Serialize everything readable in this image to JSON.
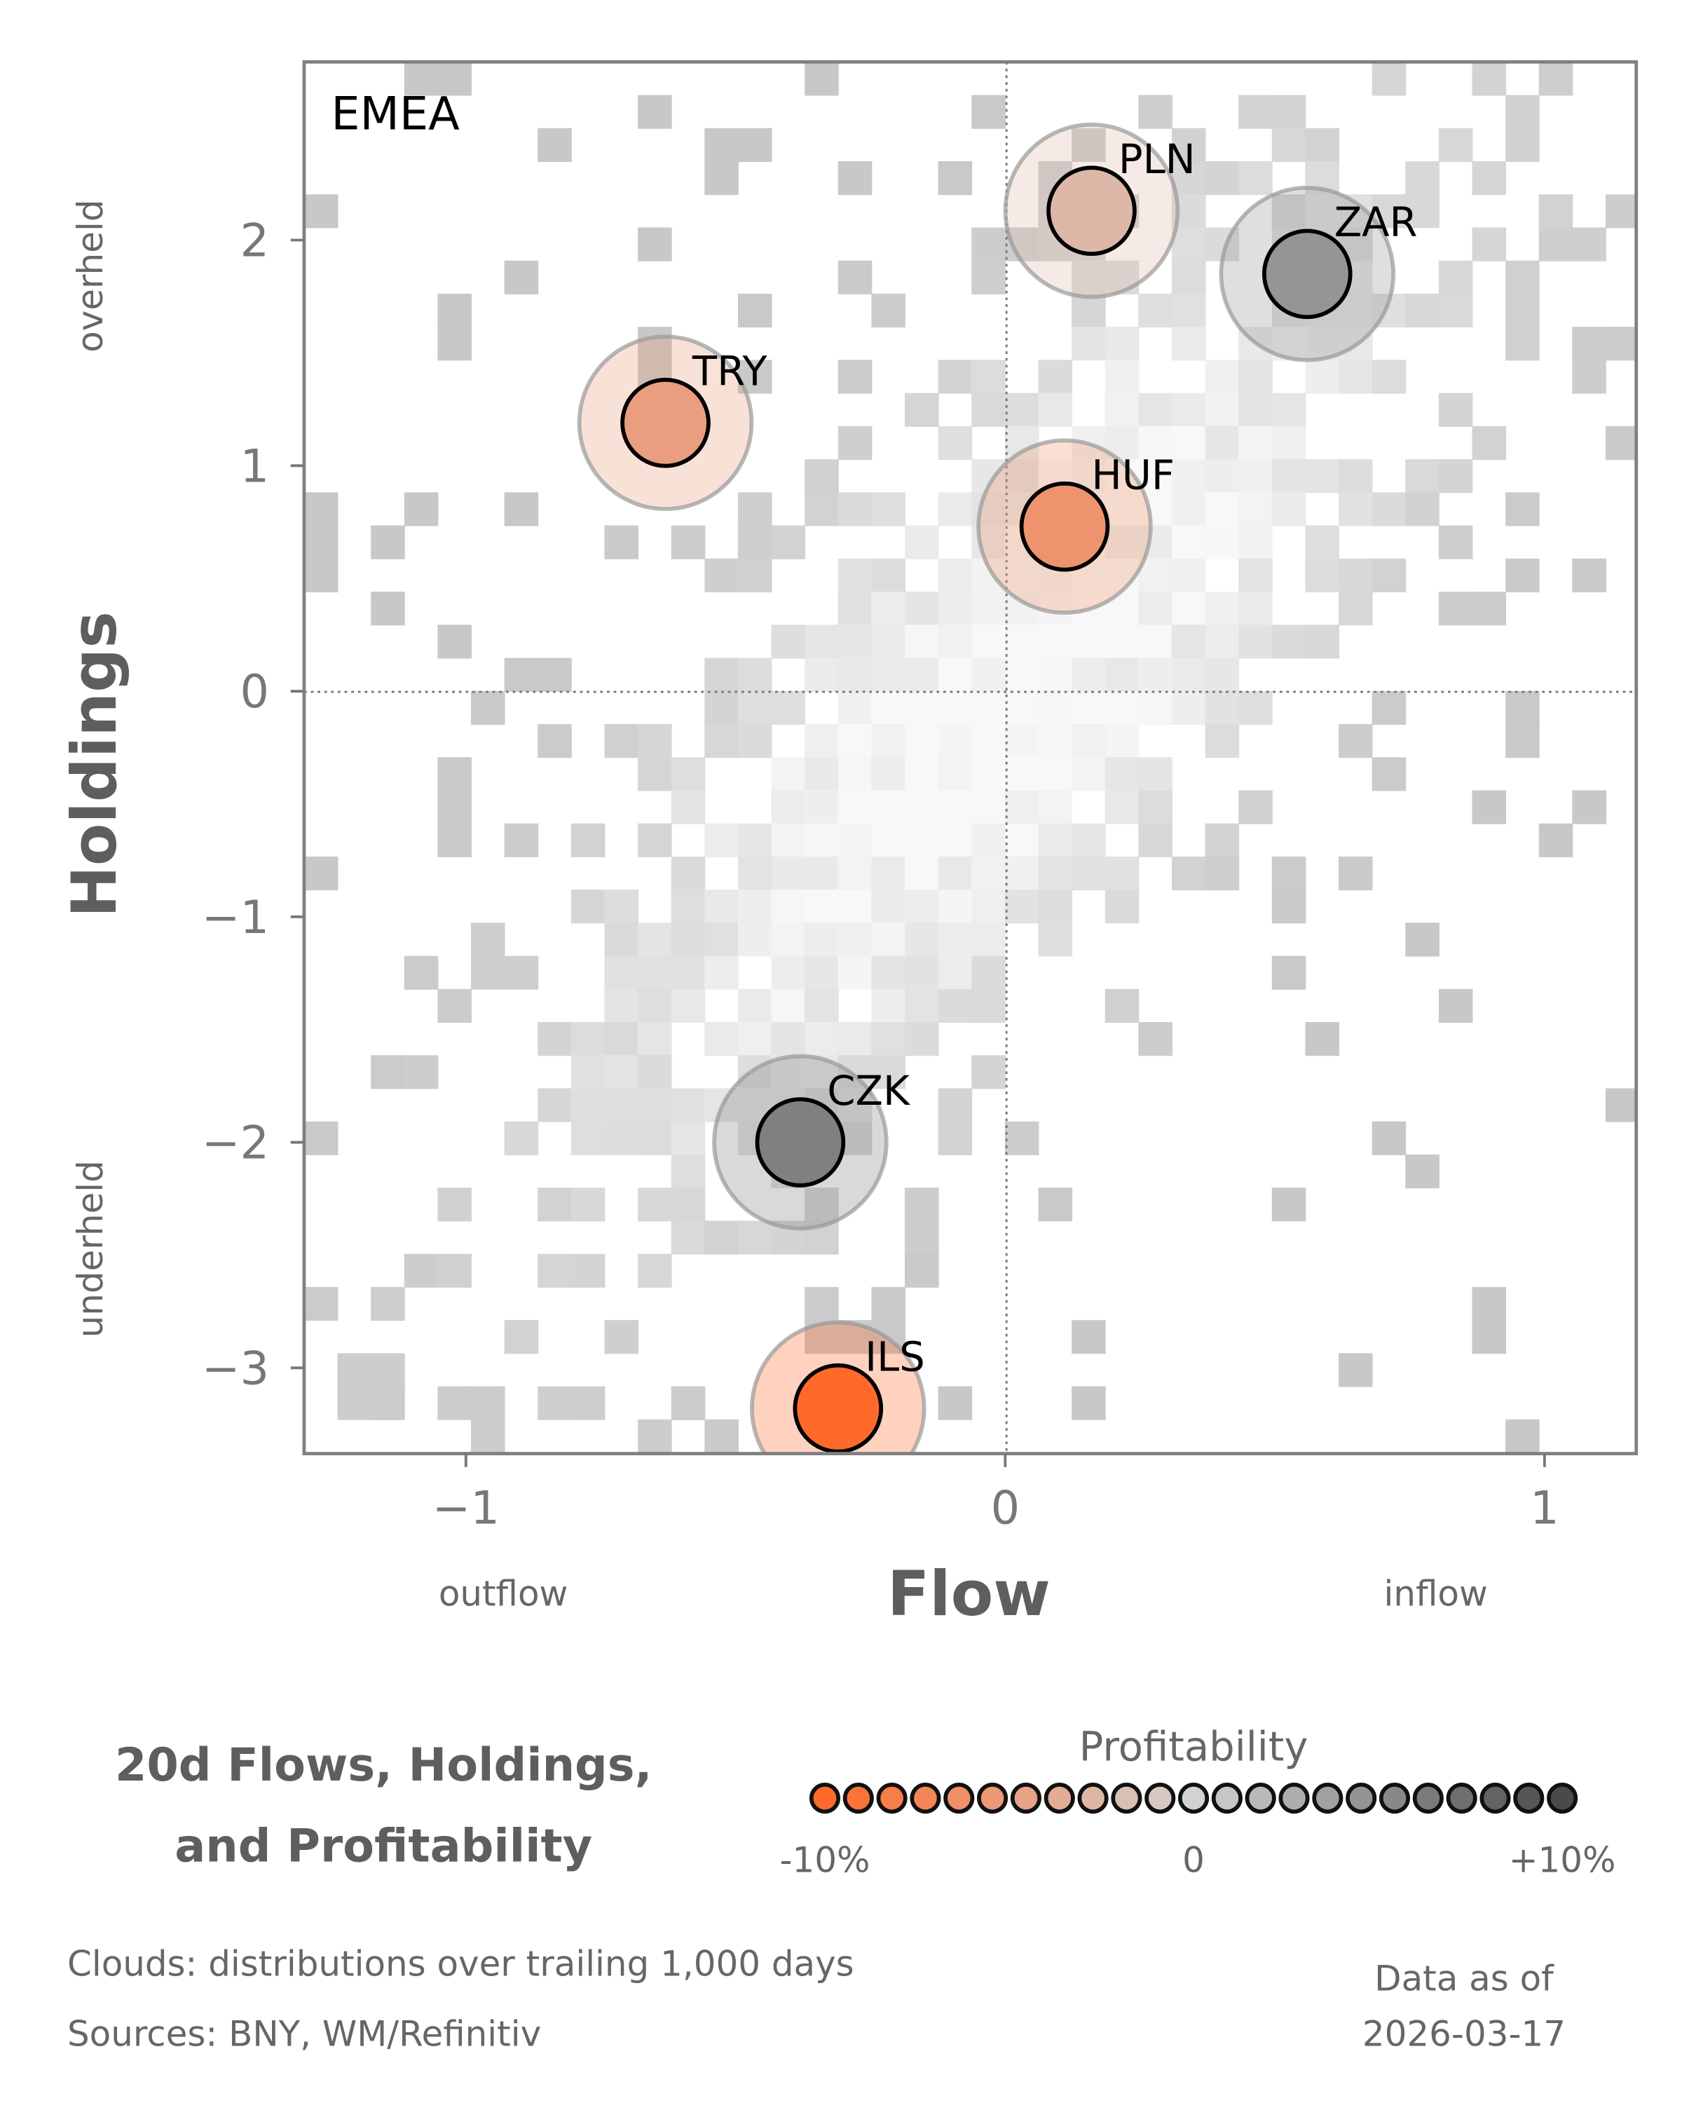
{
  "chart_data": {
    "type": "scatter",
    "panel_label": "EMEA",
    "xlabel": "Flow",
    "ylabel": "Holdings",
    "xlim": [
      -1.3,
      1.17
    ],
    "ylim": [
      -3.38,
      2.79
    ],
    "xticks": [
      {
        "v": -1,
        "label": "−1"
      },
      {
        "v": 0,
        "label": "0"
      },
      {
        "v": 1,
        "label": "1"
      }
    ],
    "yticks": [
      {
        "v": 2,
        "label": "2"
      },
      {
        "v": 1,
        "label": "1"
      },
      {
        "v": 0,
        "label": "0"
      },
      {
        "v": -1,
        "label": "−1"
      },
      {
        "v": -2,
        "label": "−2"
      },
      {
        "v": -3,
        "label": "−3"
      }
    ],
    "x_annotations": {
      "left": "outflow",
      "right": "inflow"
    },
    "y_annotations": {
      "top": "overheld",
      "bottom": "underheld"
    },
    "grid": false,
    "reference_lines": {
      "x": 0,
      "y": 0
    },
    "points": [
      {
        "label": "PLN",
        "flow": 0.16,
        "holdings": 2.13,
        "profitability": -2.5
      },
      {
        "label": "ZAR",
        "flow": 0.56,
        "holdings": 1.85,
        "profitability": 4.5
      },
      {
        "label": "TRY",
        "flow": -0.63,
        "holdings": 1.19,
        "profitability": -5
      },
      {
        "label": "HUF",
        "flow": 0.11,
        "holdings": 0.73,
        "profitability": -6
      },
      {
        "label": "CZK",
        "flow": -0.38,
        "holdings": -2.0,
        "profitability": 6
      },
      {
        "label": "ILS",
        "flow": -0.31,
        "holdings": -3.18,
        "profitability": -10
      }
    ],
    "background": "2D histogram clouds (grey)"
  },
  "title_lines": [
    "20d Flows, Holdings,",
    "and Profitability"
  ],
  "legend": {
    "title": "Profitability",
    "min_label": "-10%",
    "mid_label": "0",
    "max_label": "+10%",
    "range": [
      -10,
      10
    ],
    "steps": 23,
    "colors": {
      "low": "#ff6a2b",
      "mid": "#d2d2d2",
      "high": "#4a4a4a"
    }
  },
  "footnotes": {
    "clouds": "Clouds:  distributions over trailing 1,000 days",
    "sources": "Sources:  BNY, WM/Refinitiv",
    "asof_label": "Data as of",
    "asof_date": "2026-03-17"
  }
}
